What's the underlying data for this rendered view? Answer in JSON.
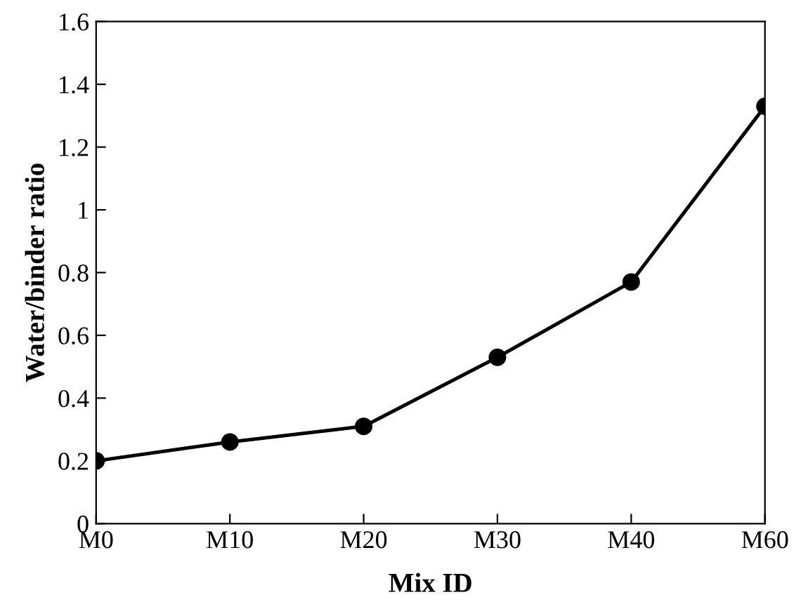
{
  "chart_data": {
    "type": "line",
    "xlabel": "Mix ID",
    "ylabel": "Water/binder ratio",
    "categories": [
      "M0",
      "M10",
      "M20",
      "M30",
      "M40",
      "M60"
    ],
    "series": [
      {
        "color": "#000000",
        "values": [
          0.2,
          0.26,
          0.31,
          0.53,
          0.77,
          1.33
        ]
      }
    ],
    "ylim": [
      0,
      1.6
    ],
    "yticks": [
      0,
      0.2,
      0.4,
      0.6,
      0.8,
      1,
      1.2,
      1.4,
      1.6
    ],
    "grid": false,
    "legend": false,
    "marker": "circle",
    "line_style": "solid"
  }
}
